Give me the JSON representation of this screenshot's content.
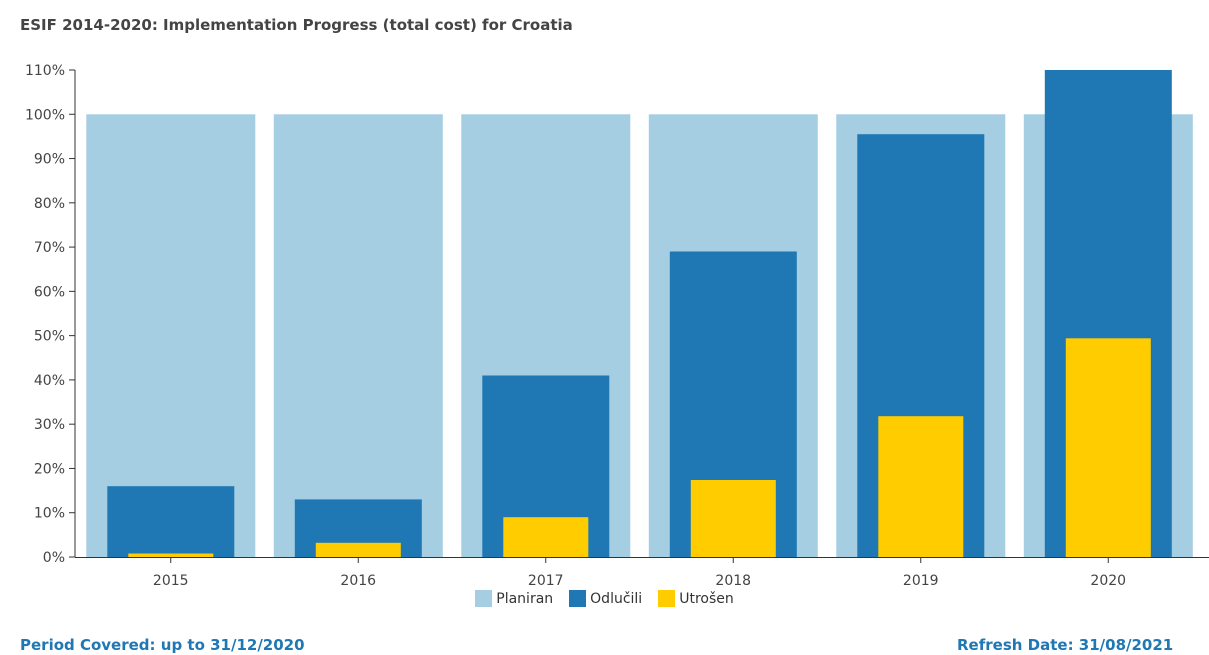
{
  "chart_data": {
    "type": "bar",
    "title": "ESIF 2014-2020: Implementation Progress (total cost) for Croatia",
    "categories": [
      "2015",
      "2016",
      "2017",
      "2018",
      "2019",
      "2020"
    ],
    "series": [
      {
        "name": "Planiran",
        "color": "#a6cee3",
        "values": [
          100,
          100,
          100,
          100,
          100,
          100
        ]
      },
      {
        "name": "Odlučili",
        "color": "#1f78b4",
        "values": [
          16,
          13,
          41,
          69,
          95.5,
          110
        ]
      },
      {
        "name": "Utrošen",
        "color": "#ffcc00",
        "values": [
          0.8,
          3.2,
          9,
          17.4,
          31.8,
          49.4
        ]
      }
    ],
    "ylim": [
      0,
      110
    ],
    "yticks": [
      "0%",
      "10%",
      "20%",
      "30%",
      "40%",
      "50%",
      "60%",
      "70%",
      "80%",
      "90%",
      "100%",
      "110%"
    ],
    "xlabel": "",
    "ylabel": "",
    "legend_position": "bottom-center",
    "grid": false
  },
  "footer": {
    "period_covered": "Period Covered: up to 31/12/2020",
    "refresh_date": "Refresh Date: 31/08/2021"
  }
}
